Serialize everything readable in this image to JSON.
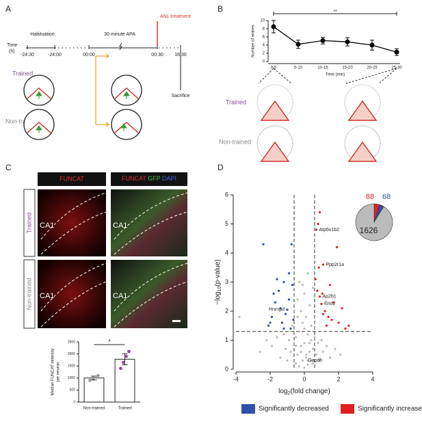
{
  "panel_labels": [
    "A",
    "B",
    "C",
    "D"
  ],
  "diagram_a": {
    "time_label": [
      "Time",
      "(h)"
    ],
    "phases": [
      "Habituation",
      "30 minute APA"
    ],
    "treatment": "ANL treatment",
    "times": [
      "-24:30",
      "-24:00",
      "00:00",
      "00:30",
      "16:30"
    ],
    "end": "Sacrifice",
    "groups": [
      "Trained",
      "Non-trained"
    ]
  },
  "arena_b": {
    "groups": [
      "Trained",
      "Non-trained"
    ]
  },
  "micrographs": {
    "header_left": "FUNCAT",
    "header_right": [
      "FUNCAT",
      "GFP",
      "DAPI"
    ],
    "region": "CA1",
    "rows": [
      "Trained",
      "Non-trained"
    ]
  },
  "chart_data": [
    {
      "type": "errorline",
      "y_label": "Number of entries",
      "x_label": "Time (min)",
      "categories": [
        "0-5",
        "5-10",
        "10-15",
        "15-20",
        "20-25",
        "25-30"
      ],
      "values": [
        8.5,
        4.2,
        5.1,
        4.8,
        4.0,
        2.3
      ],
      "errors": [
        1.5,
        1.0,
        0.8,
        1.0,
        1.2,
        0.8
      ],
      "color": "#000000",
      "ylim": [
        0,
        10
      ],
      "yticks": [
        0,
        2,
        4,
        6,
        8,
        10
      ],
      "significance": "**"
    },
    {
      "type": "bar",
      "y_label": [
        "Median FUNCAT intensity",
        "per neuron"
      ],
      "categories": [
        "Non-trained",
        "Trained"
      ],
      "values": [
        1000,
        1780
      ],
      "errors": [
        80,
        230
      ],
      "points": [
        [
          900,
          1000,
          1050,
          1100
        ],
        [
          1400,
          1650,
          1900,
          2100
        ]
      ],
      "colors": [
        "#9a9a9a",
        "#8a4a9a"
      ],
      "ylim": [
        0,
        2500
      ],
      "yticks": [
        0,
        500,
        1000,
        1500,
        2000,
        2500
      ],
      "significance": "*"
    },
    {
      "type": "scatter",
      "x_label": [
        "log",
        "2",
        "(fold change)"
      ],
      "y_label": [
        "−log",
        "10",
        "(p-value)"
      ],
      "xlim": [
        -4,
        4
      ],
      "xticks": [
        -4,
        -2,
        0,
        2,
        4
      ],
      "ylim": [
        0,
        6
      ],
      "yticks": [
        0,
        1,
        2,
        3,
        4,
        5,
        6
      ],
      "thresholds": {
        "x": [
          -0.6,
          0.6
        ],
        "y": 1.3
      },
      "series": [
        {
          "color": "#bbbbbb",
          "x": [
            -3.8,
            -2.6,
            -2.2,
            -1.9,
            -1.6,
            -1.4,
            -1.2,
            -1.1,
            -1.0,
            -0.9,
            -0.8,
            -0.7,
            -0.6,
            -0.5,
            -0.5,
            -0.4,
            -0.4,
            -0.3,
            -0.3,
            -0.2,
            -0.2,
            -0.1,
            -0.1,
            0,
            0,
            0,
            0.1,
            0.1,
            0.2,
            0.2,
            0.3,
            0.3,
            0.4,
            0.4,
            0.5,
            0.5,
            0.6,
            0.7,
            0.8,
            0.9,
            1.0,
            1.1,
            1.3,
            1.5,
            1.8,
            2.1,
            -0.3,
            0.2,
            -0.1,
            0.4,
            -0.6,
            0.5,
            -0.2,
            0.1,
            0,
            0.3,
            -0.4,
            0.6,
            -0.5,
            0.2
          ],
          "values": [
            1.8,
            0.6,
            1.0,
            0.8,
            1.1,
            0.4,
            1.2,
            0.7,
            0.3,
            1.0,
            0.6,
            1.5,
            2.0,
            0.2,
            1.1,
            0.5,
            2.4,
            0.1,
            1.3,
            0.8,
            2.0,
            0.3,
            1.6,
            0.05,
            0.9,
            2.6,
            0.4,
            1.8,
            0.15,
            1.2,
            0.6,
            2.2,
            0.3,
            1.0,
            0.7,
            2.8,
            1.1,
            0.5,
            0.9,
            0.3,
            1.0,
            0.6,
            0.8,
            0.4,
            0.7,
            0.5,
            3.0,
            3.3,
            2.9,
            1.5,
            0.9,
            0.2,
            0.6,
            0.5,
            1.4,
            0.9,
            1.8,
            2.5,
            0.8,
            0.3
          ]
        },
        {
          "name": "Significantly decreased",
          "color": "#2f4fa8",
          "x": [
            -2.4,
            -2.1,
            -1.9,
            -1.7,
            -1.5,
            -1.3,
            -1.2,
            -1.0,
            -0.9,
            -0.8,
            -0.7,
            -1.6,
            -1.1,
            -0.75,
            -1.4,
            -2.0,
            -0.9,
            -0.65,
            -1.8,
            -1.2
          ],
          "values": [
            4.3,
            1.5,
            1.8,
            2.3,
            2.7,
            1.6,
            3.0,
            2.05,
            2.4,
            1.4,
            2.9,
            3.1,
            1.9,
            4.3,
            2.1,
            1.6,
            3.3,
            1.7,
            2.6,
            1.4
          ]
        },
        {
          "name": "Significantly increased",
          "color": "#e02020",
          "x": [
            0.8,
            0.7,
            0.9,
            1.0,
            1.1,
            1.2,
            1.3,
            1.5,
            1.6,
            1.7,
            1.9,
            2.0,
            2.2,
            2.4,
            2.6,
            0.65,
            0.75,
            0.9,
            1.1,
            1.4,
            0.85,
            1.05
          ],
          "values": [
            5.0,
            4.8,
            2.5,
            2.25,
            3.6,
            2.0,
            1.5,
            2.9,
            1.7,
            2.3,
            4.2,
            1.6,
            2.1,
            1.4,
            1.5,
            3.1,
            2.7,
            5.4,
            1.9,
            1.8,
            3.5,
            2.6
          ]
        }
      ],
      "annotations": [
        {
          "text": "Atp6v1b2",
          "x": 0.7,
          "y": 4.8
        },
        {
          "text": "Ppp2r1a",
          "x": 1.1,
          "y": 3.6
        },
        {
          "text": "Ap2b1",
          "x": 0.9,
          "y": 2.5
        },
        {
          "text": "Eno2",
          "x": 1.0,
          "y": 2.25
        },
        {
          "text": "Hnrnpd",
          "x": -1.0,
          "y": 2.05
        },
        {
          "text": "Gapdh",
          "x": 0.05,
          "y": 0.3
        }
      ]
    },
    {
      "type": "pie",
      "values": [
        88,
        68,
        1626
      ],
      "colors": [
        "#e02020",
        "#2f4fa8",
        "#bbbbbb"
      ]
    }
  ]
}
